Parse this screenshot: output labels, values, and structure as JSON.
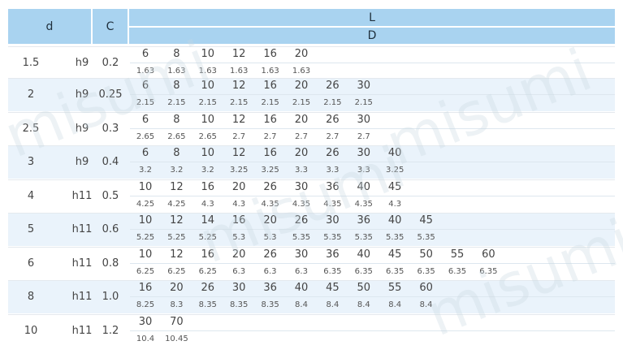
{
  "header": {
    "d": "d",
    "c": "C",
    "l": "L",
    "dd": "D"
  },
  "rows": [
    {
      "d": "1.5",
      "tol": "h9",
      "c": "0.2",
      "L": [
        "6",
        "8",
        "10",
        "12",
        "16",
        "20"
      ],
      "D": [
        "1.63",
        "1.63",
        "1.63",
        "1.63",
        "1.63",
        "1.63"
      ]
    },
    {
      "d": "2",
      "tol": "h9",
      "c": "0.25",
      "L": [
        "6",
        "8",
        "10",
        "12",
        "16",
        "20",
        "26",
        "30"
      ],
      "D": [
        "2.15",
        "2.15",
        "2.15",
        "2.15",
        "2.15",
        "2.15",
        "2.15",
        "2.15"
      ]
    },
    {
      "d": "2.5",
      "tol": "h9",
      "c": "0.3",
      "L": [
        "6",
        "8",
        "10",
        "12",
        "16",
        "20",
        "26",
        "30"
      ],
      "D": [
        "2.65",
        "2.65",
        "2.65",
        "2.7",
        "2.7",
        "2.7",
        "2.7",
        "2.7"
      ]
    },
    {
      "d": "3",
      "tol": "h9",
      "c": "0.4",
      "L": [
        "6",
        "8",
        "10",
        "12",
        "16",
        "20",
        "26",
        "30",
        "40"
      ],
      "D": [
        "3.2",
        "3.2",
        "3.2",
        "3.25",
        "3.25",
        "3.3",
        "3.3",
        "3.3",
        "3.25"
      ]
    },
    {
      "d": "4",
      "tol": "h11",
      "c": "0.5",
      "L": [
        "10",
        "12",
        "16",
        "20",
        "26",
        "30",
        "36",
        "40",
        "45"
      ],
      "D": [
        "4.25",
        "4.25",
        "4.3",
        "4.3",
        "4.35",
        "4.35",
        "4.35",
        "4.35",
        "4.3"
      ]
    },
    {
      "d": "5",
      "tol": "h11",
      "c": "0.6",
      "L": [
        "10",
        "12",
        "14",
        "16",
        "20",
        "26",
        "30",
        "36",
        "40",
        "45"
      ],
      "D": [
        "5.25",
        "5.25",
        "5.25",
        "5.3",
        "5.3",
        "5.35",
        "5.35",
        "5.35",
        "5.35",
        "5.35"
      ]
    },
    {
      "d": "6",
      "tol": "h11",
      "c": "0.8",
      "L": [
        "10",
        "12",
        "16",
        "20",
        "26",
        "30",
        "36",
        "40",
        "45",
        "50",
        "55",
        "60"
      ],
      "D": [
        "6.25",
        "6.25",
        "6.25",
        "6.3",
        "6.3",
        "6.3",
        "6.35",
        "6.35",
        "6.35",
        "6.35",
        "6.35",
        "6.35"
      ]
    },
    {
      "d": "8",
      "tol": "h11",
      "c": "1.0",
      "L": [
        "16",
        "20",
        "26",
        "30",
        "36",
        "40",
        "45",
        "50",
        "55",
        "60"
      ],
      "D": [
        "8.25",
        "8.3",
        "8.35",
        "8.35",
        "8.35",
        "8.4",
        "8.4",
        "8.4",
        "8.4",
        "8.4"
      ]
    },
    {
      "d": "10",
      "tol": "h11",
      "c": "1.2",
      "L": [
        "30",
        "70"
      ],
      "D": [
        "10.4",
        "10.45"
      ]
    }
  ],
  "watermark": "misumi",
  "colors": {
    "header_bg": "#a9d3f0",
    "alt_row_bg": "#eaf3fb"
  }
}
